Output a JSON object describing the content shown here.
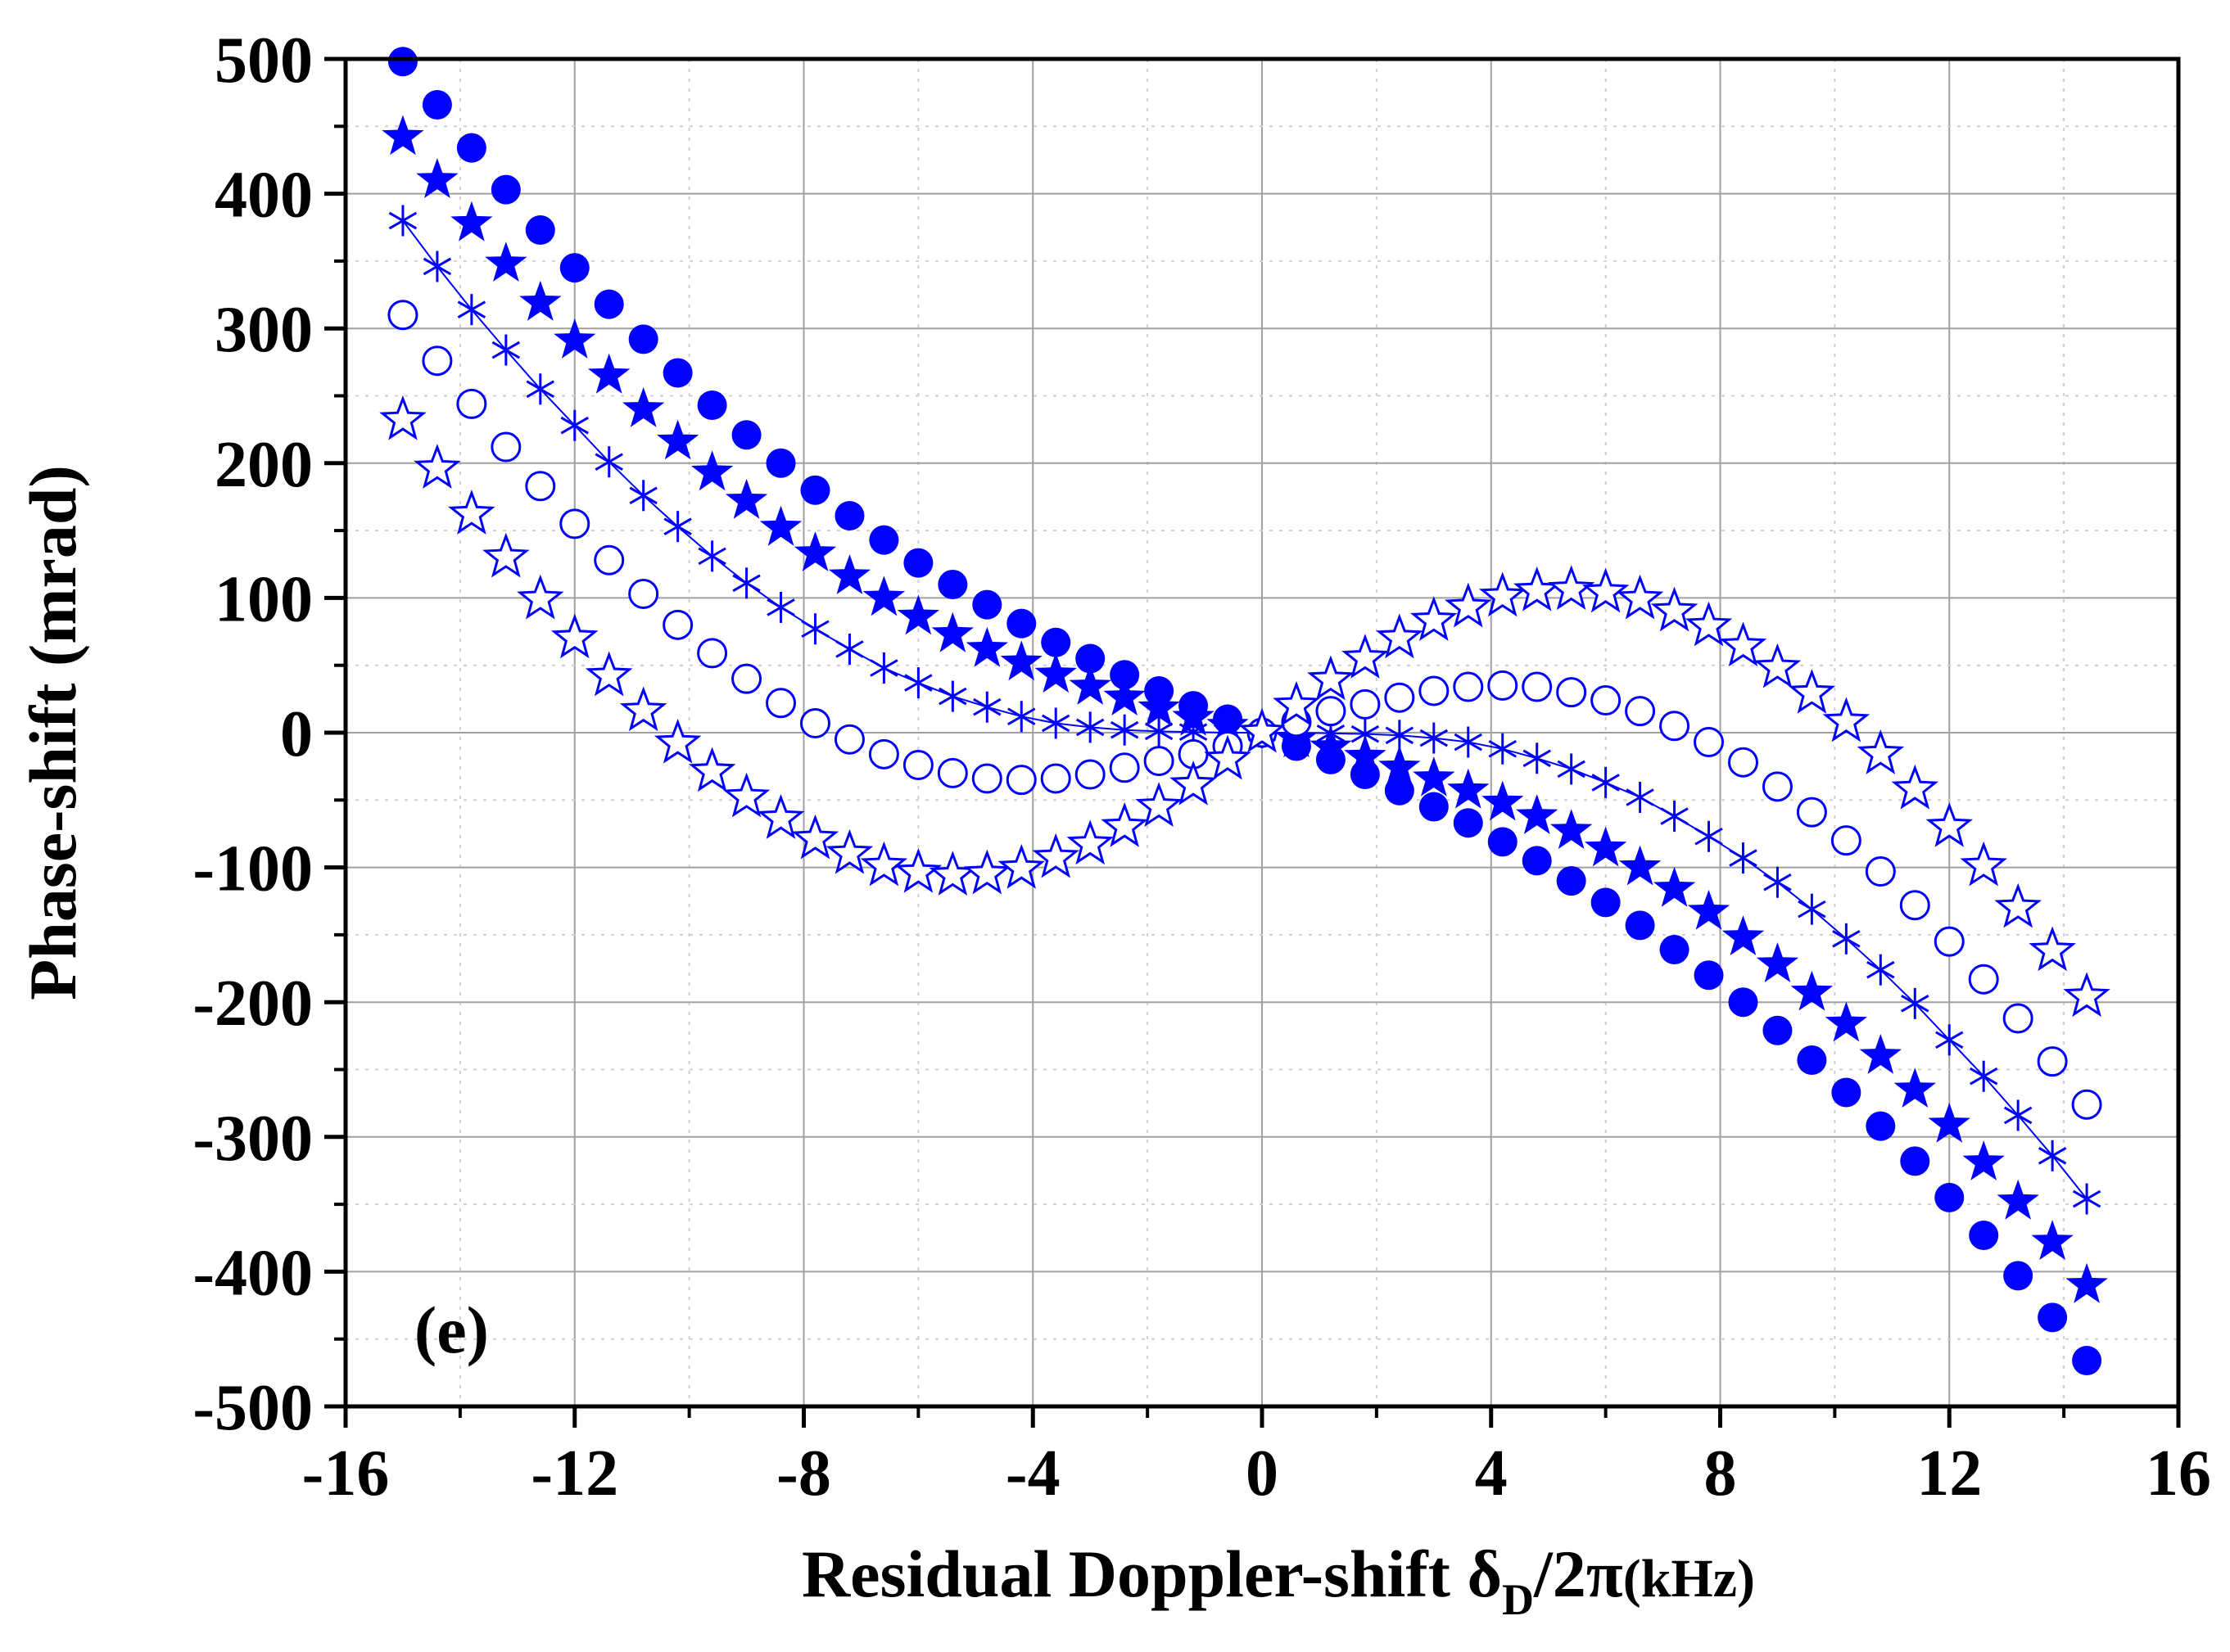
{
  "chart_data": {
    "type": "scatter",
    "panel_label": "(e)",
    "xlabel": {
      "main": "Residual Doppler-shift δ",
      "sub": "D",
      "tail": "/2π",
      "unit": "(kHz)"
    },
    "ylabel": "Phase-shift (mrad)",
    "xlim": [
      -16,
      16
    ],
    "ylim": [
      -500,
      500
    ],
    "xticks": [
      -16,
      -12,
      -8,
      -4,
      0,
      4,
      8,
      12,
      16
    ],
    "yticks": [
      -500,
      -400,
      -300,
      -200,
      -100,
      0,
      100,
      200,
      300,
      400,
      500
    ],
    "xtick_labels": [
      "-16",
      "-12",
      "-8",
      "-4",
      "0",
      "4",
      "8",
      "12",
      "16"
    ],
    "ytick_labels": [
      "-500",
      "-400",
      "-300",
      "-200",
      "-100",
      "0",
      "100",
      "200",
      "300",
      "400",
      "500"
    ],
    "grid": true,
    "color": "#0000ff",
    "x": [
      -15.0,
      -14.4,
      -13.8,
      -13.2,
      -12.6,
      -12.0,
      -11.4,
      -10.8,
      -10.2,
      -9.6,
      -9.0,
      -8.4,
      -7.8,
      -7.2,
      -6.6,
      -6.0,
      -5.4,
      -4.8,
      -4.2,
      -3.6,
      -3.0,
      -2.4,
      -1.8,
      -1.2,
      -0.6,
      0.0,
      0.6,
      1.2,
      1.8,
      2.4,
      3.0,
      3.6,
      4.2,
      4.8,
      5.4,
      6.0,
      6.6,
      7.2,
      7.8,
      8.4,
      9.0,
      9.6,
      10.2,
      10.8,
      11.4,
      12.0,
      12.6,
      13.2,
      13.8,
      14.4
    ],
    "series": [
      {
        "name": "filled-circles",
        "marker": "filled-circle",
        "values": [
          498,
          466,
          434,
          403,
          373,
          345,
          318,
          292,
          267,
          243,
          221,
          200,
          180,
          161,
          143,
          126,
          110,
          95,
          81,
          67,
          55,
          43,
          31,
          20,
          10,
          0,
          -10,
          -20,
          -31,
          -43,
          -55,
          -67,
          -81,
          -95,
          -110,
          -126,
          -143,
          -161,
          -180,
          -200,
          -221,
          -243,
          -267,
          -292,
          -318,
          -345,
          -373,
          -403,
          -434,
          -466
        ]
      },
      {
        "name": "filled-stars",
        "marker": "filled-star",
        "values": [
          442,
          410,
          378,
          348,
          319,
          291,
          265,
          240,
          216,
          193,
          172,
          152,
          133,
          116,
          100,
          86,
          73,
          62,
          52,
          43,
          34,
          26,
          18,
          11,
          5,
          0,
          -5,
          -11,
          -18,
          -26,
          -34,
          -43,
          -52,
          -62,
          -73,
          -86,
          -100,
          -116,
          -133,
          -152,
          -172,
          -193,
          -216,
          -240,
          -265,
          -291,
          -319,
          -348,
          -378,
          -410
        ]
      },
      {
        "name": "asterisks-line",
        "marker": "asterisk",
        "values": [
          380,
          346,
          314,
          284,
          255,
          228,
          201,
          176,
          153,
          131,
          111,
          93,
          77,
          62,
          48,
          37,
          27,
          19,
          12,
          7,
          4,
          2,
          1,
          0.5,
          0,
          0,
          0,
          -0.5,
          -1,
          -2,
          -4,
          -7,
          -12,
          -19,
          -27,
          -37,
          -48,
          -62,
          -77,
          -93,
          -111,
          -131,
          -153,
          -176,
          -201,
          -228,
          -255,
          -284,
          -314,
          -346
        ]
      },
      {
        "name": "open-circles",
        "marker": "open-circle",
        "values": [
          310,
          276,
          244,
          212,
          183,
          155,
          128,
          103,
          80,
          59,
          40,
          22,
          7,
          -5,
          -16,
          -24,
          -30,
          -34,
          -35,
          -34,
          -31,
          -26,
          -21,
          -16,
          -10,
          0,
          8,
          16,
          21,
          26,
          31,
          34,
          35,
          34,
          30,
          24,
          16,
          5,
          -7,
          -22,
          -40,
          -59,
          -80,
          -103,
          -128,
          -155,
          -183,
          -212,
          -244,
          -276
        ]
      },
      {
        "name": "open-stars",
        "marker": "open-star",
        "values": [
          232,
          196,
          162,
          130,
          99,
          70,
          42,
          16,
          -8,
          -29,
          -48,
          -64,
          -79,
          -90,
          -99,
          -104,
          -106,
          -105,
          -101,
          -93,
          -83,
          -70,
          -55,
          -39,
          -20,
          0,
          20,
          39,
          55,
          70,
          83,
          93,
          101,
          105,
          106,
          104,
          99,
          90,
          79,
          64,
          48,
          29,
          8,
          -16,
          -42,
          -70,
          -99,
          -130,
          -162,
          -196
        ]
      }
    ]
  }
}
